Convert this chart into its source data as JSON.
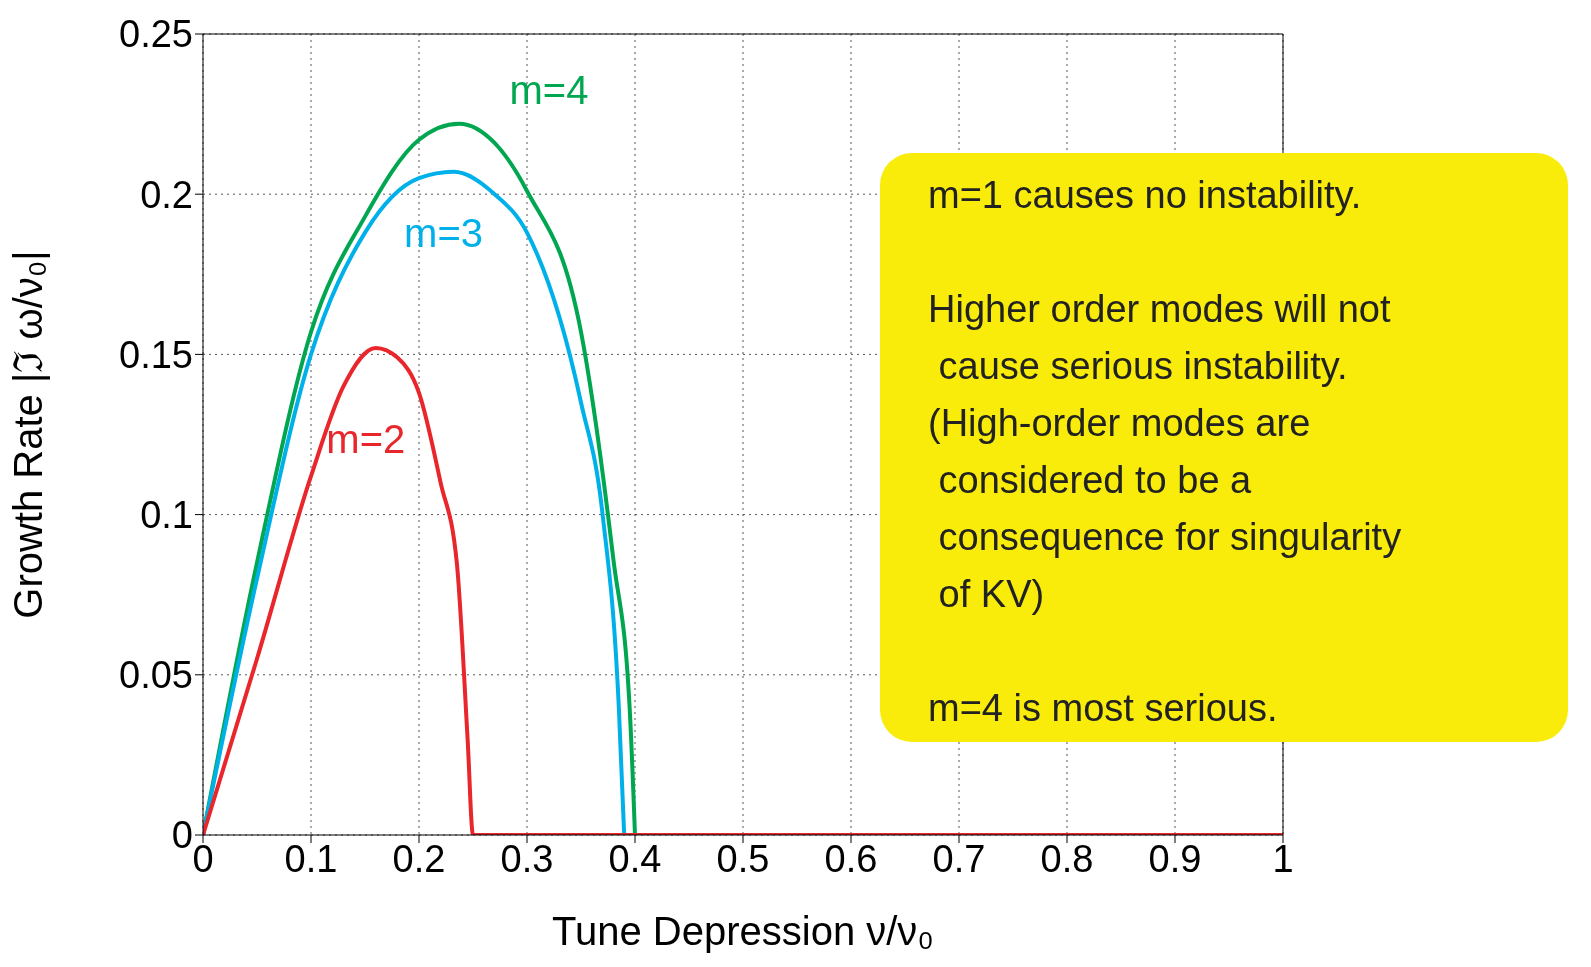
{
  "chart_data": {
    "type": "line",
    "xlabel": "Tune Depression  ν/ν₀",
    "ylabel": "Growth Rate  |ℑ ω/ν₀|",
    "xlim": [
      0,
      1
    ],
    "xticks": [
      0,
      0.1,
      0.2,
      0.3,
      0.4,
      0.5,
      0.6,
      0.7,
      0.8,
      0.9,
      1
    ],
    "ylim": [
      0,
      0.25
    ],
    "yticks": [
      0,
      0.05,
      0.1,
      0.15,
      0.2,
      0.25
    ],
    "grid": true,
    "line_style": "solid",
    "series": [
      {
        "name": "m=4",
        "color": "#00a650",
        "x": [
          0,
          0.05,
          0.1,
          0.15,
          0.2,
          0.237,
          0.27,
          0.3,
          0.35,
          0.38,
          0.395,
          0.4
        ],
        "values": [
          0,
          0.085,
          0.157,
          0.193,
          0.217,
          0.222,
          0.216,
          0.201,
          0.157,
          0.086,
          0.04,
          0
        ]
      },
      {
        "name": "m=3",
        "color": "#00b0e8",
        "x": [
          0,
          0.05,
          0.1,
          0.15,
          0.2,
          0.232,
          0.27,
          0.3,
          0.35,
          0.37,
          0.385,
          0.39
        ],
        "values": [
          0,
          0.08,
          0.15,
          0.188,
          0.205,
          0.207,
          0.2,
          0.188,
          0.135,
          0.1,
          0.04,
          0
        ]
      },
      {
        "name": "m=2",
        "color": "#e8262b",
        "x": [
          0,
          0.05,
          0.1,
          0.13,
          0.16,
          0.18,
          0.2,
          0.22,
          0.235,
          0.245,
          0.25,
          1
        ],
        "values": [
          0,
          0.055,
          0.112,
          0.14,
          0.152,
          0.149,
          0.138,
          0.11,
          0.085,
          0.03,
          0,
          0
        ]
      }
    ],
    "annotations": [
      "m=1 causes no instability.",
      "Higher order modes will not\n cause serious instability.\n(High-order modes are\n considered to be a\n consequence for singularity\n of KV)",
      "m=4 is most serious."
    ]
  }
}
